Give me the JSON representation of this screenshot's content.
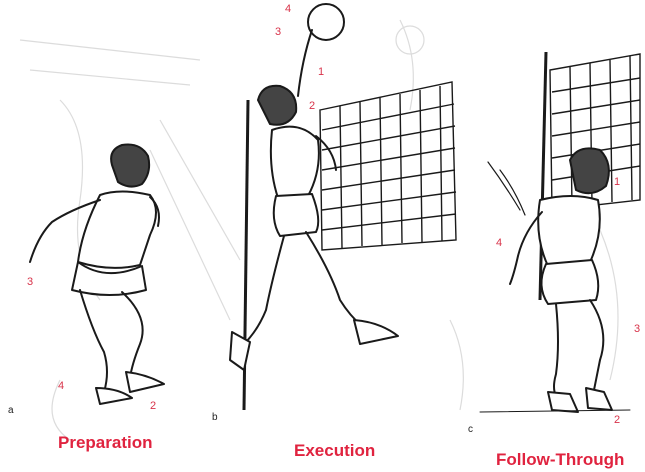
{
  "panels": [
    {
      "letter": "a",
      "caption": "Preparation",
      "numbers": [
        "3",
        "4",
        "2"
      ]
    },
    {
      "letter": "b",
      "caption": "Execution",
      "numbers": [
        "4",
        "3",
        "1",
        "2"
      ]
    },
    {
      "letter": "c",
      "caption": "Follow-Through",
      "numbers": [
        "1",
        "4",
        "3",
        "2"
      ]
    }
  ],
  "colors": {
    "label": "#d8334a",
    "caption": "#e0233f",
    "ink": "#1a1a1a",
    "sketch": "#d9d9d9"
  }
}
